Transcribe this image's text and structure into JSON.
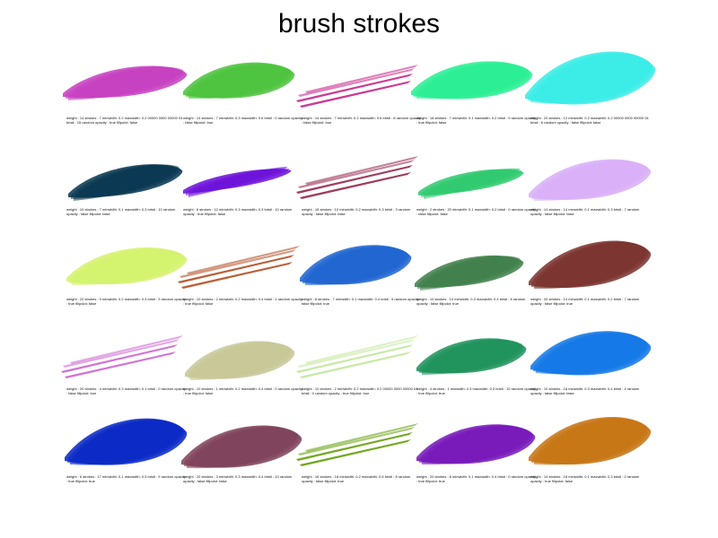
{
  "page": {
    "title": "brush strokes"
  },
  "strokes": [
    {
      "color": "#c53cbf",
      "style": "blob",
      "caption": "weight : 14 strokes : 7 minwidth: 0.2 maxwidth: 0.2 00000 0000 00000 04 bristl : 15 random opacity : true fillpolot: false"
    },
    {
      "color": "#4ac23b",
      "style": "blob",
      "caption": "weight : 14 strokes : 7 minwidth: 0.3 maxwidth: 0.6 bristl : 0 random opacity : false fillpolot: true"
    },
    {
      "color": "#c82f8d",
      "style": "lines",
      "caption": "weight : 14 strokes : 7 minwidth: 0.2 maxwidth: 0.6 bristl : 8 random opacity : false fillpolot: true"
    },
    {
      "color": "#26ef92",
      "style": "blob",
      "caption": "weight : 18 strokes : 7 minwidth: 0.1 maxwidth: 0.2 bristl : 9 random opacity : true fillpolot: false"
    },
    {
      "color": "#36ece6",
      "style": "blob",
      "caption": "weight : 20 strokes : 12 minwidth: 0.2 maxwidth: 0.2 00000 0000 00000 04 bristl : 6 random opacity : false fillpolot: false"
    },
    {
      "color": "#04334e",
      "style": "blob",
      "caption": "weight : 10 strokes : 7 minwidth: 0.1 maxwidth: 0.3 bristl : 10 random opacity : false fillpolot: false"
    },
    {
      "color": "#6a0cd8",
      "style": "blob",
      "caption": "weight : 6 strokes : 12 minwidth: 0.3 maxwidth: 0.3 bristl : 10 random opacity : true fillpolot: false"
    },
    {
      "color": "#9a3056",
      "style": "lines",
      "caption": "weight : 18 strokes : 10 minwidth: 0.2 maxwidth: 0.3 bristl : 3 random opacity : false fillpolot: false"
    },
    {
      "color": "#2bc96b",
      "style": "blob",
      "caption": "weight : 2 strokes : 20 minwidth: 0.1 maxwidth: 0.2 bristl : 0 random opacity : false fillpolot: false"
    },
    {
      "color": "#d8aef8",
      "style": "blob",
      "caption": "weight : 14 strokes : 14 minwidth: 0.1 maxwidth: 0.3 bristl : 7 random opacity : false fillpolot: false"
    },
    {
      "color": "#d3f26a",
      "style": "blob",
      "caption": "weight : 20 strokes : 9 minwidth: 0.2 maxwidth: 0.3 bristl : 3 random opacity : true fillpolot: false"
    },
    {
      "color": "#b6572e",
      "style": "lines",
      "caption": "weight : 10 strokes : 2 minwidth: 0.2 maxwidth: 0.4 bristl : 1 random opacity : true fillpolot: false"
    },
    {
      "color": "#1b62d0",
      "style": "blob",
      "caption": "weight : 8 strokes : 7 minwidth: 0.1 maxwidth: 0.4 bristl : 9 random opacity : false fillpolot: true"
    },
    {
      "color": "#3d7d48",
      "style": "blob",
      "caption": "weight : 10 strokes : 14 minwidth: 0.3 maxwidth: 0.4 bristl : 8 random opacity : false fillpolot: true"
    },
    {
      "color": "#79302b",
      "style": "blob",
      "caption": "weight : 20 strokes : 14 minwidth: 0.1 maxwidth: 0.2 bristl : 7 random opacity : false fillpolot: true"
    },
    {
      "color": "#cf6dd2",
      "style": "lines",
      "caption": "weight : 20 strokes : 4 minwidth: 0.3 maxwidth: 0.1 bristl : 0 random opacity : false fillpolot: true"
    },
    {
      "color": "#c7c796",
      "style": "blob",
      "caption": "weight : 10 strokes : 1 minwidth: 0.2 maxwidth: 0.4 bristl : 0 random opacity : true fillpolot: false"
    },
    {
      "color": "#c4e8a0",
      "style": "lines",
      "caption": "weight : 10 strokes : 2 minwidth: 0.2 maxwidth: 0.2 00000 0000 00000 04 bristl : 0 random opacity : true fillpolot: true"
    },
    {
      "color": "#1a9158",
      "style": "blob",
      "caption": "weight : 4 strokes : 1 minwidth: 0.3 maxwidth: 0.3 bristl : 10 random opacity : true fillpolot: true"
    },
    {
      "color": "#0e75e6",
      "style": "blob",
      "caption": "weight : 10 strokes : 18 minwidth: 0.3 maxwidth: 0.4 bristl : 4 random opacity : false fillpolot: false"
    },
    {
      "color": "#0524c4",
      "style": "blob",
      "caption": "weight : 6 strokes : 17 minwidth: 0.1 maxwidth: 0.3 bristl : 9 random opacity : true fillpolot: true"
    },
    {
      "color": "#7c3f57",
      "style": "blob",
      "caption": "weight : 20 strokes : 3 minwidth: 0.3 maxwidth: 0.4 bristl : 10 random opacity : false fillpolot: false"
    },
    {
      "color": "#6ba314",
      "style": "lines",
      "caption": "weight : 16 strokes : 18 minwidth: 0.2 maxwidth: 0.6 bristl : 8 random opacity : false fillpolot: true"
    },
    {
      "color": "#7414b8",
      "style": "blob",
      "caption": "weight : 20 strokes : 8 minwidth: 0.1 maxwidth: 0.4 bristl : 0 random opacity : true fillpolot: true"
    },
    {
      "color": "#c6720f",
      "style": "blob",
      "caption": "weight : 14 strokes : 18 minwidth: 0.1 maxwidth: 0.3 bristl : 0 random opacity : true fillpolot: false"
    }
  ]
}
